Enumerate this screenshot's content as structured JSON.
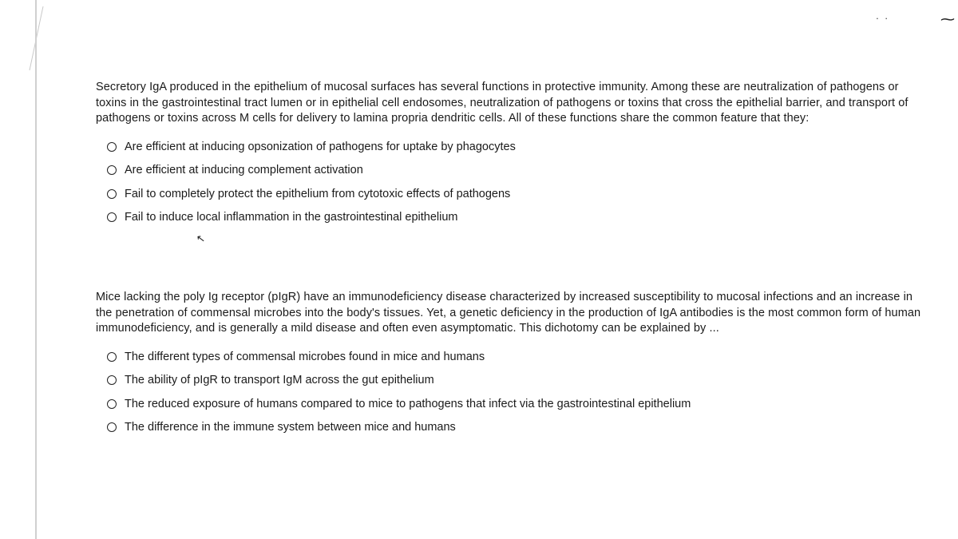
{
  "document": {
    "text_color": "#1a1a1a",
    "background_color": "#ffffff",
    "font_family": "Arial",
    "base_fontsize_pt": 11
  },
  "question1": {
    "prompt": "Secretory IgA produced in the epithelium of mucosal surfaces has several functions in protective immunity. Among these are neutralization of pathogens or toxins in the gastrointestinal tract lumen or in epithelial cell endosomes, neutralization of pathogens or toxins that cross the epithelial barrier, and transport of pathogens or toxins across M cells for delivery to lamina propria dendritic cells. All of these functions share the common feature that they:",
    "options": [
      "Are efficient at inducing opsonization of pathogens for uptake by phagocytes",
      "Are efficient at inducing complement activation",
      "Fail to completely protect the epithelium from cytotoxic effects of pathogens",
      "Fail to induce local inflammation in the gastrointestinal epithelium"
    ]
  },
  "question2": {
    "prompt": "Mice lacking the poly Ig receptor (pIgR) have an immunodeficiency disease characterized by increased susceptibility to mucosal infections and an increase in the penetration of commensal microbes into the body's tissues. Yet, a genetic deficiency in the production of IgA antibodies is the most common form of human immunodeficiency, and is generally a mild disease and often even asymptomatic. This dichotomy can be explained by ...",
    "options": [
      "The different types of commensal microbes found in mice and humans",
      "The ability of pIgR to transport IgM across the gut epithelium",
      "The reduced exposure of humans compared to mice to pathogens that infect via the gastrointestinal epithelium",
      "The difference in the immune system between mice and humans"
    ]
  },
  "artifacts": {
    "cursor_glyph": "↖",
    "tilde": "⁓",
    "dots": ". ."
  }
}
